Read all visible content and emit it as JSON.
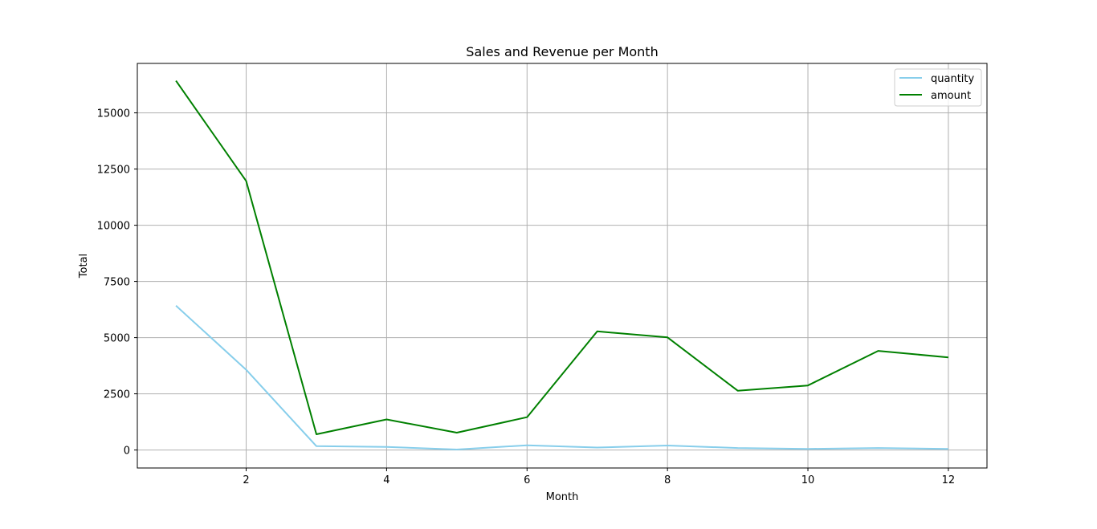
{
  "chart_data": {
    "type": "line",
    "title": "Sales and Revenue per Month",
    "xlabel": "Month",
    "ylabel": "Total",
    "x": [
      1,
      2,
      3,
      4,
      5,
      6,
      7,
      8,
      9,
      10,
      11,
      12
    ],
    "series": [
      {
        "name": "quantity",
        "color": "#87ceeb",
        "values": [
          6420,
          3570,
          170,
          140,
          20,
          210,
          110,
          200,
          90,
          50,
          90,
          50
        ]
      },
      {
        "name": "amount",
        "color": "#008000",
        "values": [
          16430,
          11970,
          700,
          1360,
          770,
          1460,
          5280,
          5010,
          2640,
          2870,
          4410,
          4120
        ]
      }
    ],
    "xlim": [
      0.45,
      12.55
    ],
    "ylim": [
      -800,
      17200
    ],
    "xticks": [
      2,
      4,
      6,
      8,
      10,
      12
    ],
    "yticks": [
      0,
      2500,
      5000,
      7500,
      10000,
      12500,
      15000
    ],
    "grid": true,
    "legend_position": "top-right"
  }
}
